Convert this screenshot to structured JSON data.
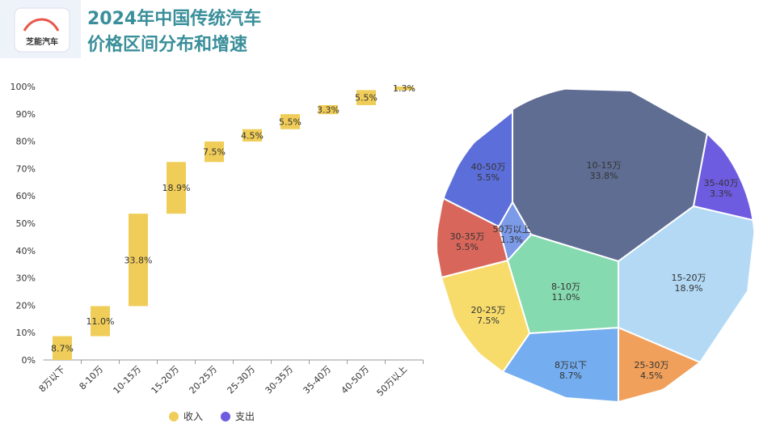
{
  "header": {
    "logo": "芝能汽车",
    "title": [
      "2024年中国传统汽车",
      "价格区间分布和增速"
    ]
  },
  "chart_data": [
    {
      "type": "waterfall",
      "categories": [
        "8万以下",
        "8-10万",
        "10-15万",
        "15-20万",
        "20-25万",
        "25-30万",
        "30-35万",
        "35-40万",
        "40-50万",
        "50万以上"
      ],
      "values": [
        8.7,
        11.0,
        33.8,
        18.9,
        7.5,
        4.5,
        5.5,
        3.3,
        5.5,
        1.3
      ],
      "value_labels": [
        "8.7%",
        "11.0%",
        "33.8%",
        "18.9%",
        "7.5%",
        "4.5%",
        "5.5%",
        "3.3%",
        "5.5%",
        "1.3%"
      ],
      "color": "#f0cd58",
      "ylim": [
        0,
        100
      ],
      "yticks": [
        {
          "value": 0,
          "label": "0%"
        },
        {
          "value": 10,
          "label": "10%"
        },
        {
          "value": 20,
          "label": "20%"
        },
        {
          "value": 30,
          "label": "30%"
        },
        {
          "value": 40,
          "label": "40%"
        },
        {
          "value": 50,
          "label": "50%"
        },
        {
          "value": 60,
          "label": "60%"
        },
        {
          "value": 70,
          "label": "70%"
        },
        {
          "value": 80,
          "label": "80%"
        },
        {
          "value": 90,
          "label": "90%"
        },
        {
          "value": 100,
          "label": "100%"
        }
      ],
      "legend": [
        {
          "name": "收入",
          "color": "#f0cd58"
        },
        {
          "name": "支出",
          "color": "#6d5ce0"
        }
      ]
    },
    {
      "type": "voronoi",
      "categories": [
        "10-15万",
        "35-40万",
        "15-20万",
        "25-30万",
        "8万以下",
        "8-10万",
        "50万以上",
        "20-25万",
        "30-35万",
        "40-50万"
      ],
      "values": [
        33.8,
        3.3,
        18.9,
        4.5,
        8.7,
        11.0,
        1.3,
        7.5,
        5.5,
        5.5
      ],
      "value_labels": [
        "33.8%",
        "3.3%",
        "18.9%",
        "4.5%",
        "8.7%",
        "11.0%",
        "1.3%",
        "7.5%",
        "5.5%",
        "5.5%"
      ],
      "colors": [
        "#5f6d93",
        "#6d5ce0",
        "#b3d9f5",
        "#f0a05a",
        "#74aef0",
        "#86dab0",
        "#7b9ae8",
        "#f7dc6c",
        "#d9665b",
        "#5c6ed9"
      ]
    }
  ]
}
